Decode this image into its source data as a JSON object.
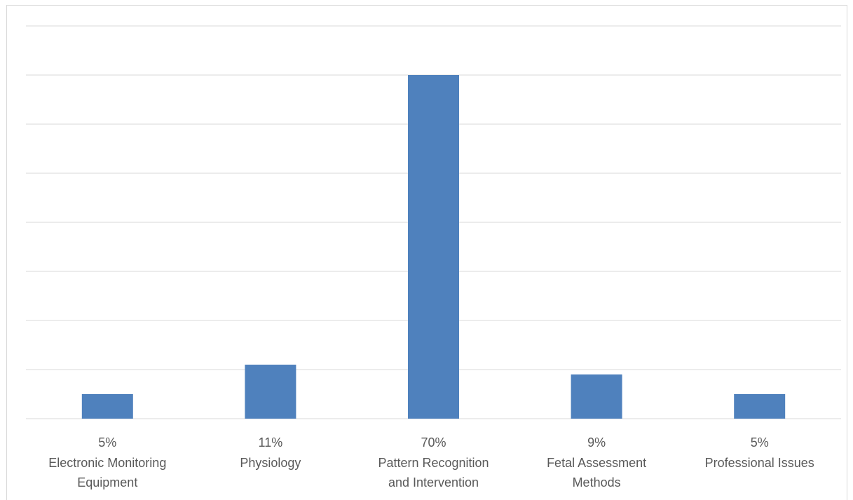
{
  "chart_data": {
    "type": "bar",
    "categories": [
      [
        "Electronic Monitoring",
        "Equipment"
      ],
      [
        "Physiology"
      ],
      [
        "Pattern Recognition",
        "and Intervention"
      ],
      [
        "Fetal Assessment",
        "Methods"
      ],
      [
        "Professional Issues"
      ]
    ],
    "values": [
      5,
      11,
      70,
      9,
      5
    ],
    "value_labels": [
      "5%",
      "11%",
      "70%",
      "9%",
      "5%"
    ],
    "color": "#4f81bd",
    "ylim": [
      0,
      80
    ],
    "yticks": [
      0,
      10,
      20,
      30,
      40,
      50,
      60,
      70,
      80
    ],
    "grid": true
  }
}
